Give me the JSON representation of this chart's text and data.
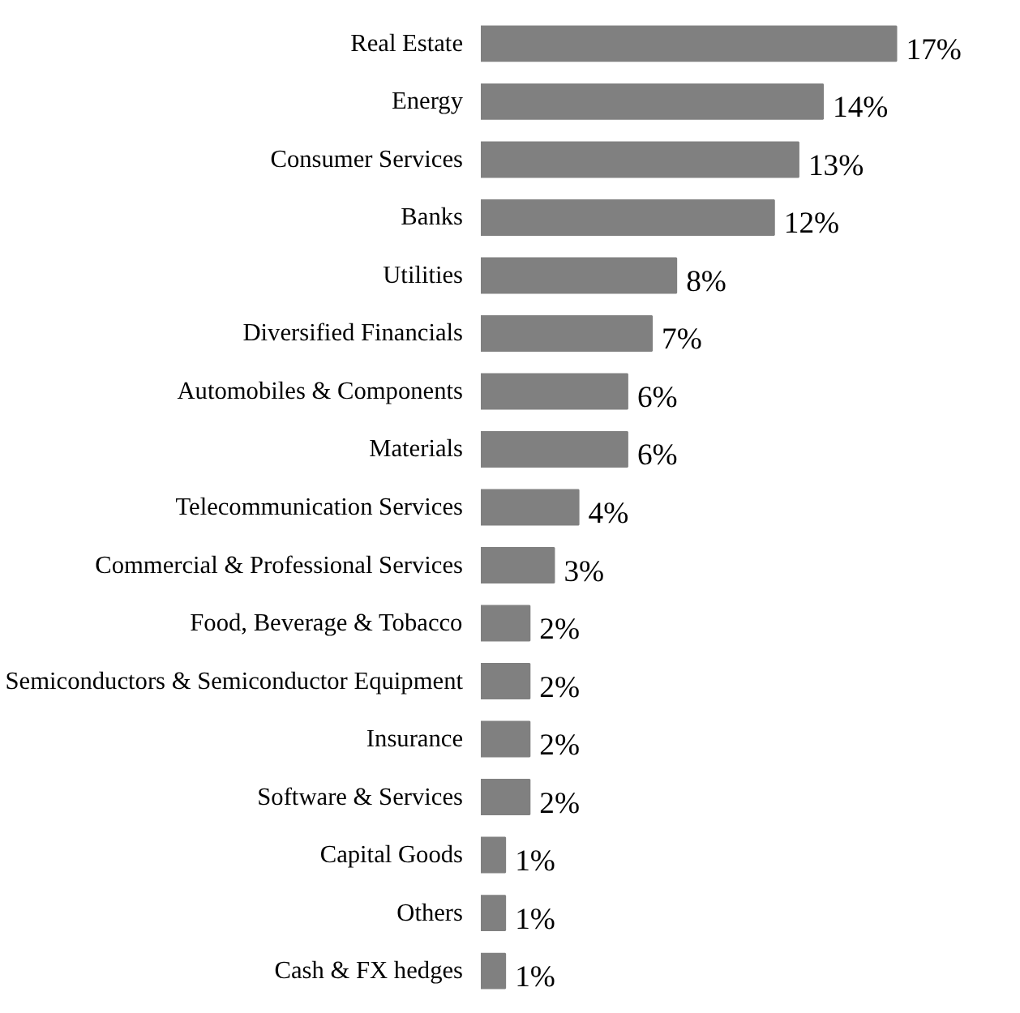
{
  "chart_data": {
    "type": "bar",
    "orientation": "horizontal",
    "data_labels": true,
    "color": "#808080",
    "categories": [
      "Real Estate",
      "Energy",
      "Consumer Services",
      "Banks",
      "Utilities",
      "Diversified Financials",
      "Automobiles & Components",
      "Materials",
      "Telecommunication Services",
      "Commercial & Professional Services",
      "Food, Beverage & Tobacco",
      "Semiconductors & Semiconductor Equipment",
      "Insurance",
      "Software & Services",
      "Capital Goods",
      "Others",
      "Cash & FX hedges"
    ],
    "values": [
      17,
      14,
      13,
      12,
      8,
      7,
      6,
      6,
      4,
      3,
      2,
      2,
      2,
      2,
      1,
      1,
      1
    ],
    "value_labels": [
      "17%",
      "14%",
      "13%",
      "12%",
      "8%",
      "7%",
      "6%",
      "6%",
      "4%",
      "3%",
      "2%",
      "2%",
      "2%",
      "2%",
      "1%",
      "1%",
      "1%"
    ]
  }
}
